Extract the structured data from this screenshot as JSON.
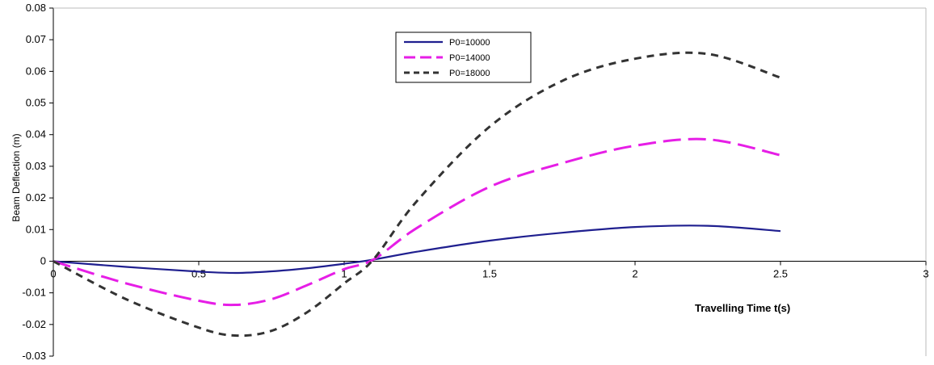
{
  "chart_data": {
    "type": "line",
    "xlabel": "Travelling Time t(s)",
    "ylabel": "Beam Deflection (m)",
    "xlim": [
      0,
      3
    ],
    "ylim": [
      -0.03,
      0.08
    ],
    "xticks": [
      "0",
      "0.5",
      "1",
      "1.5",
      "2",
      "2.5",
      "3"
    ],
    "yticks": [
      "-0.03",
      "-0.02",
      "-0.01",
      "0",
      "0.01",
      "0.02",
      "0.03",
      "0.04",
      "0.05",
      "0.06",
      "0.07",
      "0.08"
    ],
    "grid": false,
    "legend_position": "top-center",
    "x": [
      0,
      0.25,
      0.5,
      0.625,
      0.75,
      0.875,
      1.0,
      1.1,
      1.25,
      1.5,
      1.75,
      2.0,
      2.25,
      2.5
    ],
    "series": [
      {
        "name": "P0=10000",
        "color": "#1f1f8f",
        "dash": "solid",
        "values": [
          0,
          -0.0018,
          -0.0033,
          -0.0037,
          -0.0032,
          -0.0022,
          -0.0008,
          0.0005,
          0.003,
          0.0065,
          0.009,
          0.0108,
          0.0112,
          0.0095
        ]
      },
      {
        "name": "P0=14000",
        "color": "#e61ee6",
        "dash": "long-dash",
        "values": [
          0,
          -0.007,
          -0.0125,
          -0.0138,
          -0.012,
          -0.0075,
          -0.0025,
          0.0005,
          0.0105,
          0.0235,
          0.031,
          0.0365,
          0.0385,
          0.0335
        ]
      },
      {
        "name": "P0=18000",
        "color": "#333333",
        "dash": "dash",
        "values": [
          0,
          -0.012,
          -0.021,
          -0.0235,
          -0.022,
          -0.016,
          -0.007,
          0.0005,
          0.019,
          0.0425,
          0.057,
          0.064,
          0.0655,
          0.058
        ]
      }
    ]
  }
}
